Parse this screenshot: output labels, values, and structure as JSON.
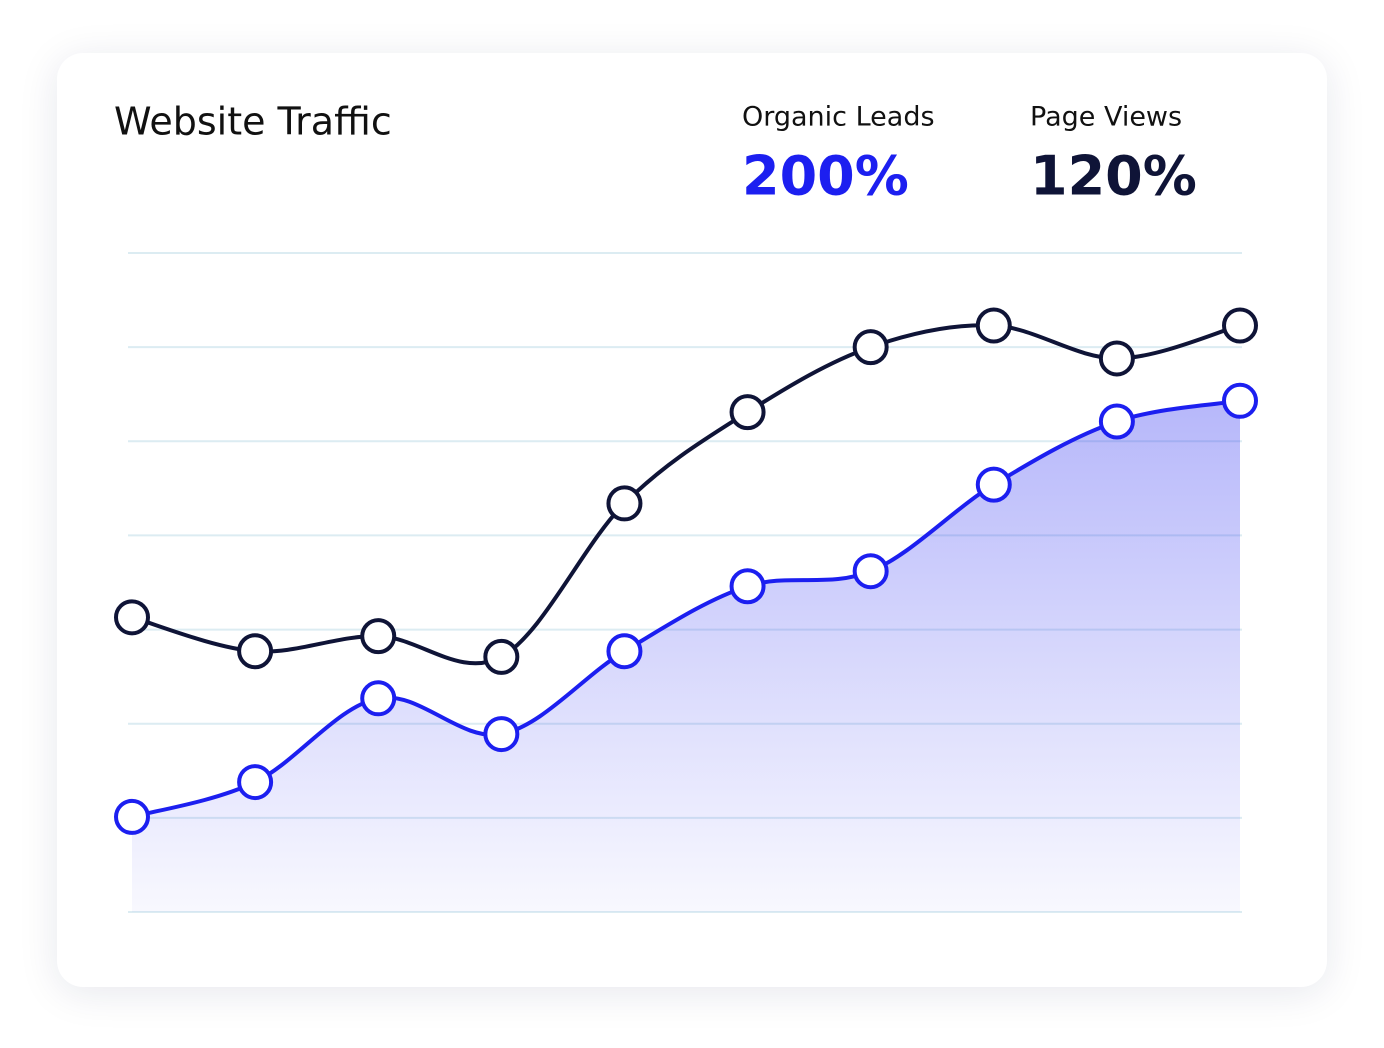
{
  "chart_data": {
    "type": "line",
    "title": "Website Traffic",
    "categories": [
      null,
      null,
      null,
      null,
      null,
      null,
      null,
      null,
      null,
      null
    ],
    "ylim": [
      0,
      7
    ],
    "yticks": [
      0,
      1,
      2,
      3,
      4,
      5,
      6,
      7
    ],
    "grid": true,
    "series": [
      {
        "name": "Organic Leads",
        "summary": "200%",
        "color": "#1c1ff0",
        "fill": true,
        "values": [
          1.01,
          1.38,
          2.27,
          1.89,
          2.77,
          3.46,
          3.62,
          4.54,
          5.21,
          5.43
        ]
      },
      {
        "name": "Page Views",
        "summary": "120%",
        "color": "#0f1437",
        "fill": false,
        "values": [
          3.13,
          2.77,
          2.93,
          2.71,
          4.34,
          5.31,
          6.0,
          6.23,
          5.88,
          6.23
        ]
      }
    ]
  }
}
